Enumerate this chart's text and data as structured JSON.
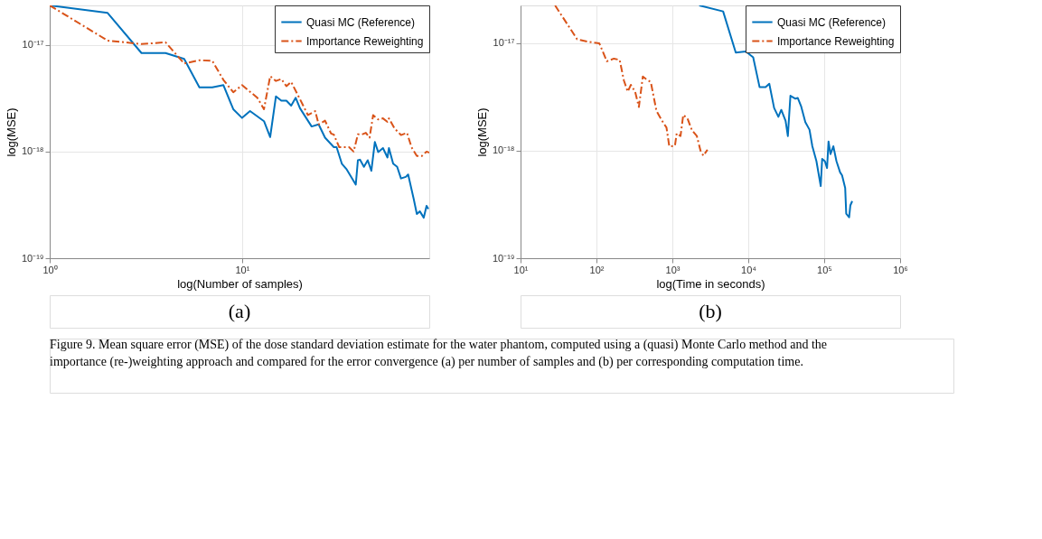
{
  "chart_data": [
    {
      "type": "line",
      "log": "xy",
      "grid": true,
      "legend": "top right",
      "xlabel": "log(Number of samples)",
      "ylabel": "log(MSE)",
      "xlim": [
        1,
        94
      ],
      "ylim": [
        1e-19,
        2.35e-17
      ],
      "xticks": [
        {
          "value": 1,
          "label": "10⁰"
        },
        {
          "value": 10,
          "label": "10¹"
        }
      ],
      "yticks": [
        {
          "value": 1e-19,
          "label": "10⁻¹⁹"
        },
        {
          "value": 1e-18,
          "label": "10⁻¹⁸"
        },
        {
          "value": 1e-17,
          "label": "10⁻¹⁷"
        }
      ],
      "annotations": [
        "(a)"
      ],
      "series": [
        {
          "name": "Quasi MC (Reference)",
          "color": "#0072bd",
          "line_style": "solid",
          "x": [
            1,
            2,
            3,
            4,
            5,
            6,
            7,
            8,
            9,
            10,
            11,
            13,
            14,
            15,
            16,
            17,
            18,
            19,
            20,
            23,
            25,
            27,
            30,
            31,
            33,
            35,
            39,
            40,
            41,
            43,
            45,
            47,
            49,
            51,
            54,
            57,
            58,
            61,
            64,
            67,
            71,
            73,
            78,
            81,
            84,
            88,
            91,
            93
          ],
          "values": [
            2.35e-17,
            2e-17,
            8.4e-18,
            8.4e-18,
            7.4e-18,
            4e-18,
            4e-18,
            4.2e-18,
            2.5e-18,
            2.07e-18,
            2.4e-18,
            1.93e-18,
            1.37e-18,
            3.3e-18,
            3e-18,
            3e-18,
            2.7e-18,
            3.2e-18,
            2.55e-18,
            1.72e-18,
            1.8e-18,
            1.35e-18,
            1.1e-18,
            1.1e-18,
            7.7e-19,
            6.8e-19,
            4.9e-19,
            8.3e-19,
            8.4e-19,
            7.2e-19,
            8.3e-19,
            6.6e-19,
            1.23e-18,
            9.9e-19,
            1.08e-18,
            8.8e-19,
            1.08e-18,
            7.7e-19,
            7.2e-19,
            5.6e-19,
            5.8e-19,
            6.1e-19,
            3.6e-19,
            2.6e-19,
            2.75e-19,
            2.4e-19,
            3.1e-19,
            2.9e-19
          ]
        },
        {
          "name": "Importance Reweighting",
          "color": "#d95319",
          "line_style": "dashed",
          "x": [
            1,
            2,
            3,
            4,
            5,
            6,
            7,
            8,
            9,
            10,
            12,
            13,
            14,
            15,
            16,
            17,
            18,
            20,
            22,
            24,
            25,
            27,
            29,
            30,
            32,
            36,
            38,
            40,
            42,
            44,
            46,
            48,
            51,
            54,
            57,
            58,
            62,
            67,
            72,
            76,
            81,
            86,
            91,
            94
          ],
          "values": [
            2.35e-17,
            1.1e-17,
            1.02e-17,
            1.06e-17,
            6.7e-18,
            7.2e-18,
            7.1e-18,
            4.7e-18,
            3.6e-18,
            4.2e-18,
            3.2e-18,
            2.5e-18,
            5.1e-18,
            4.6e-18,
            4.8e-18,
            4.1e-18,
            4.5e-18,
            3.1e-18,
            2.2e-18,
            2.4e-18,
            1.8e-18,
            1.95e-18,
            1.48e-18,
            1.44e-18,
            1.1e-18,
            1.1e-18,
            1e-18,
            1.45e-18,
            1.45e-18,
            1.5e-18,
            1.35e-18,
            2.2e-18,
            2e-18,
            2.05e-18,
            1.9e-18,
            2.05e-18,
            1.65e-18,
            1.43e-18,
            1.5e-18,
            1.1e-18,
            9.1e-19,
            9.1e-19,
            1e-18,
            9.8e-19
          ]
        }
      ]
    },
    {
      "type": "line",
      "log": "xy",
      "grid": true,
      "legend": "top right",
      "xlabel": "log(Time in seconds)",
      "ylabel": "log(MSE)",
      "xlim": [
        10,
        1000000
      ],
      "ylim": [
        1e-19,
        2.25e-17
      ],
      "xticks": [
        {
          "value": 10,
          "label": "10¹"
        },
        {
          "value": 100,
          "label": "10²"
        },
        {
          "value": 1000,
          "label": "10³"
        },
        {
          "value": 10000,
          "label": "10⁴"
        },
        {
          "value": 100000,
          "label": "10⁵"
        },
        {
          "value": 1000000,
          "label": "10⁶"
        }
      ],
      "yticks": [
        {
          "value": 1e-19,
          "label": "10⁻¹⁹"
        },
        {
          "value": 1e-18,
          "label": "10⁻¹⁸"
        },
        {
          "value": 1e-17,
          "label": "10⁻¹⁷"
        }
      ],
      "annotations": [
        "(b)",
        "Figure 9. Mean square error (MSE) of the dose standard deviation estimate for the water phantom, computed using a (quasi) Monte Carlo method and the importance (re-)weighting approach and compared for the error convergence (a) per number of samples and (b) per corresponding computation time."
      ],
      "series": [
        {
          "name": "Quasi MC (Reference)",
          "color": "#0072bd",
          "line_style": "solid",
          "x": [
            2260,
            4660,
            6840,
            9300,
            11600,
            14100,
            16900,
            18900,
            21900,
            24900,
            27200,
            31000,
            33200,
            35900,
            41800,
            44800,
            49600,
            56400,
            64000,
            69800,
            79000,
            90000,
            94000,
            102000,
            109000,
            114000,
            121000,
            132000,
            145000,
            162000,
            172000,
            189000,
            195000,
            213000,
            221000,
            234000
          ],
          "values": [
            2.25e-17,
            1.98e-17,
            8.2e-18,
            8.4e-18,
            7.4e-18,
            3.9e-18,
            3.9e-18,
            4.2e-18,
            2.5e-18,
            2.07e-18,
            2.4e-18,
            1.9e-18,
            1.37e-18,
            3.25e-18,
            3.05e-18,
            3.1e-18,
            2.6e-18,
            1.85e-18,
            1.57e-18,
            1.1e-18,
            8e-19,
            4.7e-19,
            8.4e-19,
            8e-19,
            6.9e-19,
            1.22e-18,
            9.3e-19,
            1.1e-18,
            8e-19,
            6.3e-19,
            5.9e-19,
            4.5e-19,
            2.6e-19,
            2.4e-19,
            3.1e-19,
            3.4e-19
          ]
        },
        {
          "name": "Importance Reweighting",
          "color": "#d95319",
          "line_style": "dashed",
          "x": [
            28.5,
            55.6,
            78,
            109,
            137,
            170,
            202,
            230,
            258,
            284,
            323,
            362,
            408,
            458,
            520,
            617,
            732,
            837,
            910,
            1080,
            1140,
            1280,
            1390,
            1580,
            1810,
            2100,
            2350,
            2560,
            2900
          ],
          "values": [
            2.25e-17,
            1.09e-17,
            1.03e-17,
            1e-17,
            6.8e-18,
            7.2e-18,
            7e-18,
            4.5e-18,
            3.55e-18,
            4.1e-18,
            3.55e-18,
            2.55e-18,
            4.9e-18,
            4.6e-18,
            4.35e-18,
            2.35e-18,
            1.9e-18,
            1.64e-18,
            1.1e-18,
            1.11e-18,
            1.45e-18,
            1.37e-18,
            2.15e-18,
            2e-18,
            1.55e-18,
            1.37e-18,
            1e-18,
            9e-19,
            1.02e-18
          ]
        }
      ]
    }
  ]
}
